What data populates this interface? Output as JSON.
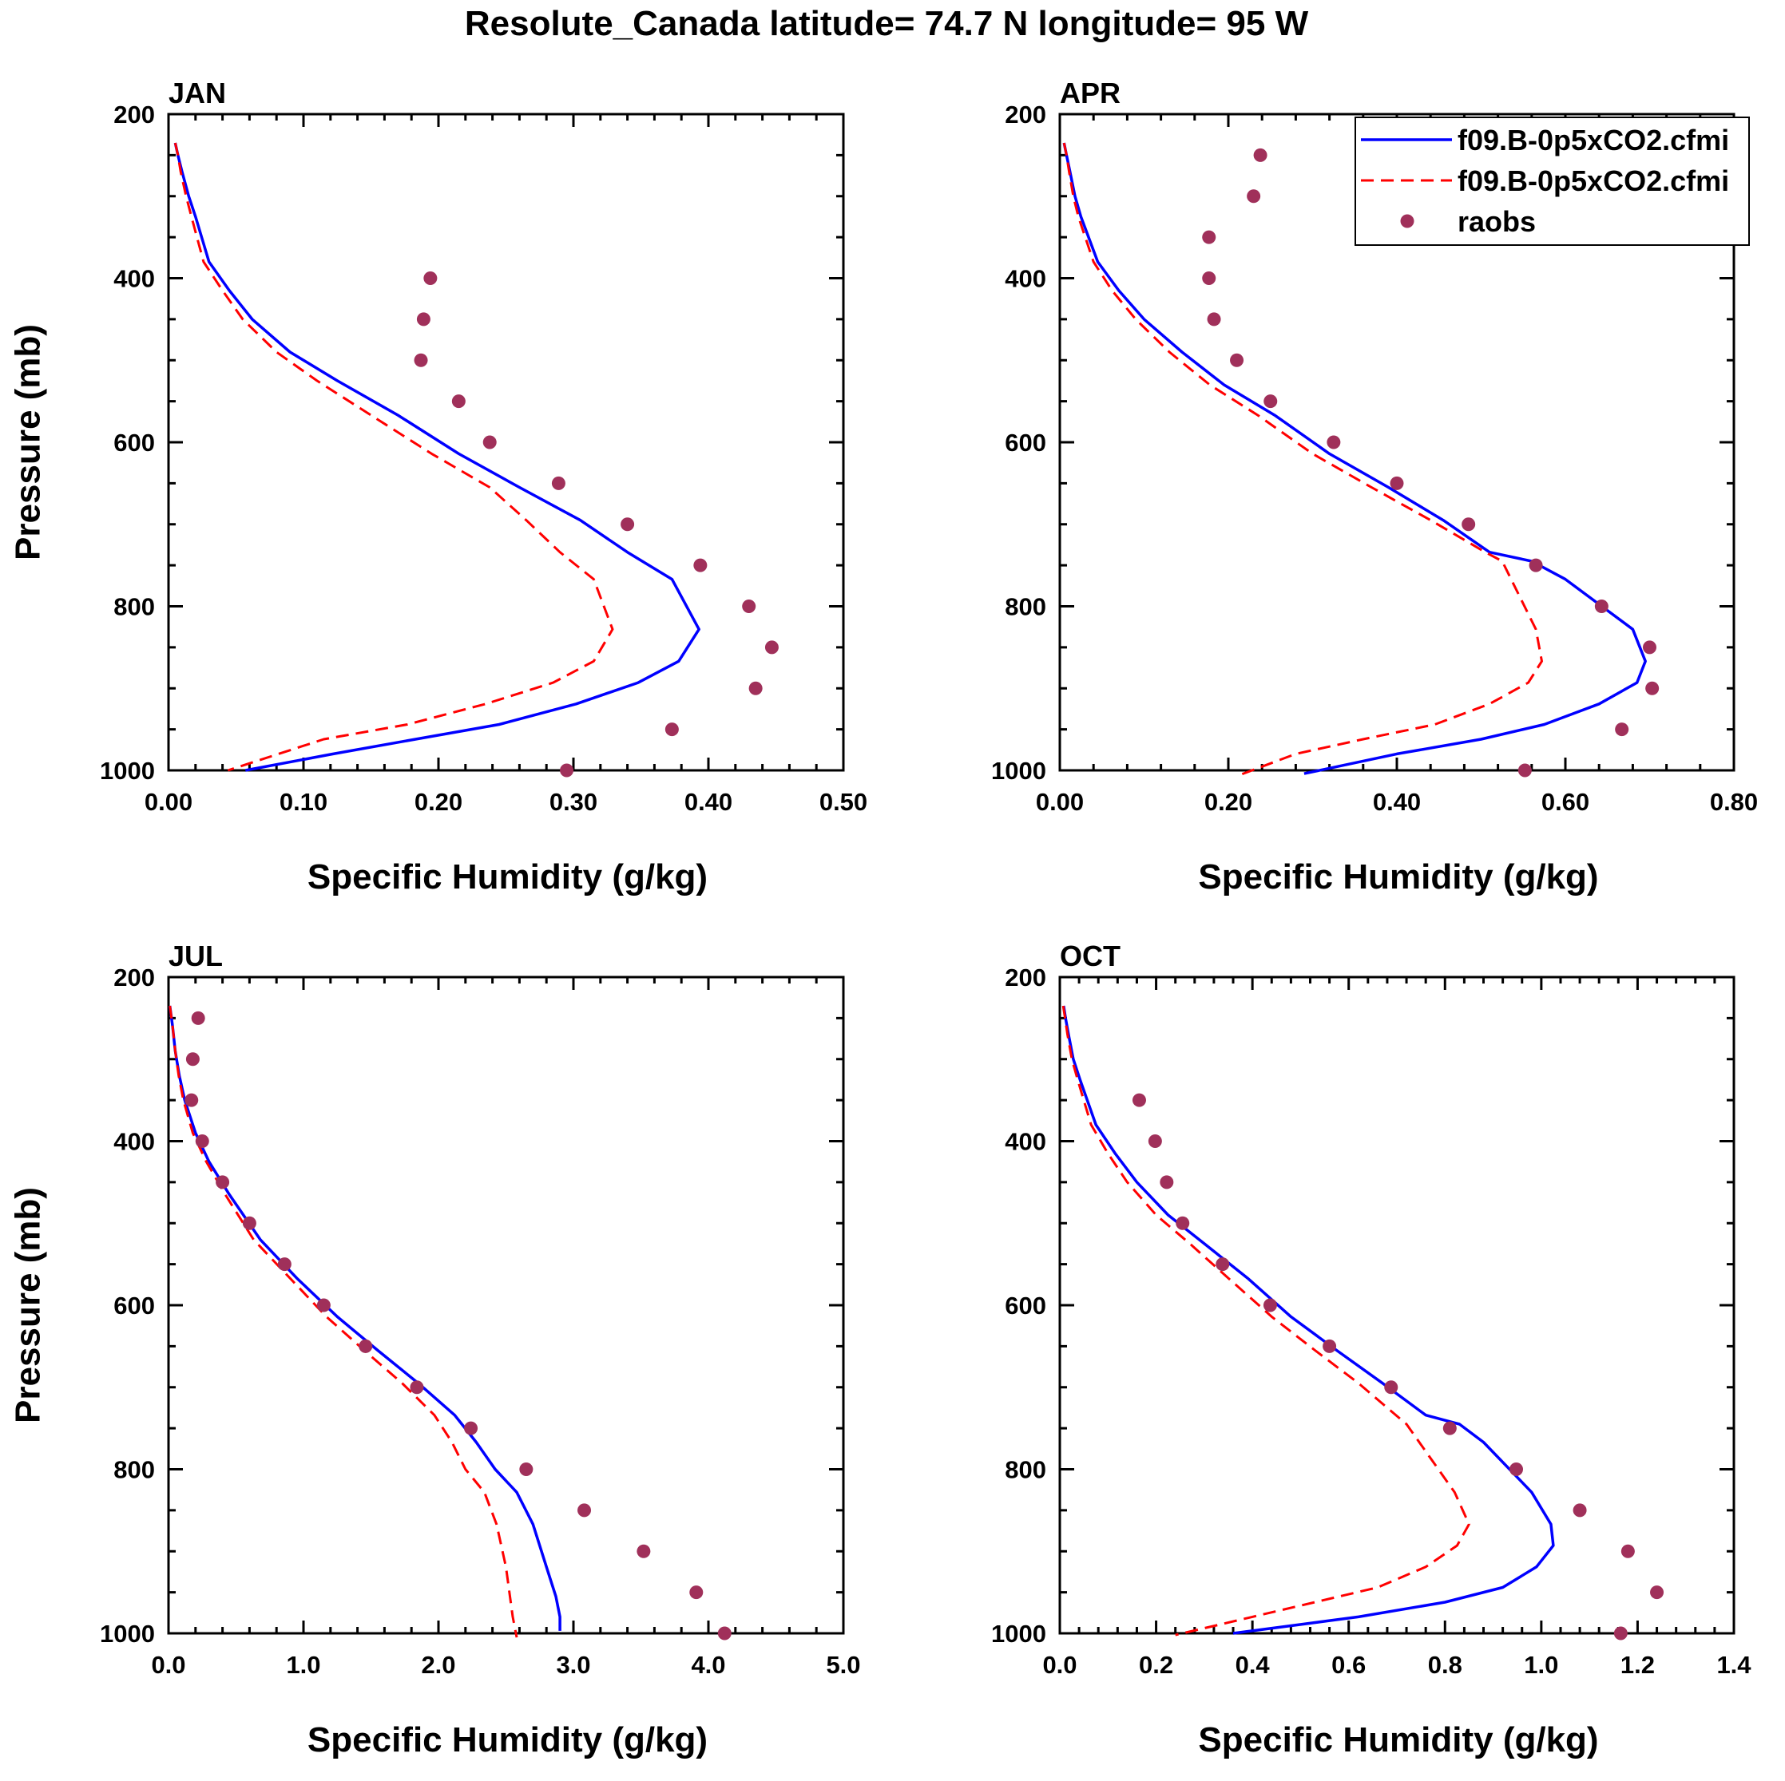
{
  "title": "Resolute_Canada  latitude= 74.7 N longitude= 95 W",
  "legend": {
    "entries": [
      {
        "label": "f09.B-0p5xCO2.cfmi",
        "kind": "line",
        "color": "#0000ff",
        "dash": false
      },
      {
        "label": "f09.B-0p5xCO2.cfmi",
        "kind": "line",
        "color": "#ff0000",
        "dash": true
      },
      {
        "label": "raobs",
        "kind": "marker",
        "color": "#a0305a"
      }
    ]
  },
  "colors": {
    "model1": "#0000ff",
    "model2": "#ff0000",
    "raobs": "#a0305a"
  },
  "chart_data": [
    {
      "type": "line",
      "panel": "JAN",
      "xlabel": "Specific Humidity (g/kg)",
      "ylabel": "Pressure (mb)",
      "xlim": [
        0,
        0.5
      ],
      "ylim": [
        200,
        1000
      ],
      "y_inverted": true,
      "xticks": [
        "0.00",
        "0.10",
        "0.20",
        "0.30",
        "0.40",
        "0.50"
      ],
      "xtick_values": [
        0,
        0.1,
        0.2,
        0.3,
        0.4,
        0.5
      ],
      "yticks": [
        "200",
        "400",
        "600",
        "800",
        "1000"
      ],
      "ytick_values": [
        200,
        400,
        600,
        800,
        1000
      ],
      "series": [
        {
          "name": "f09.B-0p5xCO2.cfmi",
          "x": [
            0.005,
            0.007,
            0.01,
            0.015,
            0.02,
            0.03,
            0.045,
            0.062,
            0.09,
            0.125,
            0.17,
            0.215,
            0.26,
            0.305,
            0.34,
            0.373,
            0.393,
            0.378,
            0.348,
            0.302,
            0.245,
            0.183,
            0.122,
            0.057
          ],
          "y": [
            235,
            250,
            270,
            300,
            325,
            380,
            415,
            450,
            490,
            525,
            567,
            614,
            655,
            695,
            734,
            767,
            828,
            867,
            893,
            919,
            944,
            962,
            980,
            1000
          ]
        },
        {
          "name": "f09.B-0p5xCO2.cfmi",
          "x": [
            0.005,
            0.007,
            0.009,
            0.013,
            0.017,
            0.026,
            0.04,
            0.055,
            0.08,
            0.11,
            0.15,
            0.195,
            0.238,
            0.265,
            0.29,
            0.315,
            0.329,
            0.315,
            0.285,
            0.235,
            0.177,
            0.115,
            0.044
          ],
          "y": [
            235,
            250,
            270,
            300,
            325,
            380,
            415,
            450,
            490,
            525,
            567,
            614,
            655,
            695,
            734,
            767,
            828,
            867,
            893,
            919,
            944,
            962,
            1000
          ]
        },
        {
          "name": "raobs",
          "marker": "dot",
          "x": [
            0.194,
            0.189,
            0.187,
            0.215,
            0.238,
            0.289,
            0.34,
            0.394,
            0.43,
            0.447,
            0.435,
            0.373,
            0.295
          ],
          "y": [
            400,
            450,
            500,
            550,
            600,
            650,
            700,
            750,
            800,
            850,
            900,
            950,
            1000
          ]
        }
      ]
    },
    {
      "type": "line",
      "panel": "APR",
      "xlabel": "Specific Humidity (g/kg)",
      "ylabel": "",
      "xlim": [
        0,
        0.8
      ],
      "ylim": [
        200,
        1000
      ],
      "y_inverted": true,
      "xticks": [
        "0.00",
        "0.20",
        "0.40",
        "0.60",
        "0.80"
      ],
      "xtick_values": [
        0,
        0.2,
        0.4,
        0.6,
        0.8
      ],
      "yticks": [
        "200",
        "400",
        "600",
        "800",
        "1000"
      ],
      "ytick_values": [
        200,
        400,
        600,
        800,
        1000
      ],
      "series": [
        {
          "name": "f09.B-0p5xCO2.cfmi",
          "x": [
            0.005,
            0.008,
            0.012,
            0.018,
            0.025,
            0.045,
            0.07,
            0.1,
            0.145,
            0.195,
            0.255,
            0.32,
            0.39,
            0.455,
            0.51,
            0.56,
            0.6,
            0.68,
            0.695,
            0.685,
            0.64,
            0.575,
            0.5,
            0.4,
            0.29
          ],
          "y": [
            235,
            250,
            270,
            300,
            325,
            380,
            415,
            450,
            490,
            530,
            567,
            614,
            655,
            695,
            734,
            745,
            767,
            828,
            867,
            893,
            919,
            944,
            962,
            980,
            1004
          ]
        },
        {
          "name": "f09.B-0p5xCO2.cfmi",
          "x": [
            0.005,
            0.008,
            0.011,
            0.016,
            0.022,
            0.04,
            0.062,
            0.09,
            0.13,
            0.178,
            0.235,
            0.3,
            0.37,
            0.44,
            0.505,
            0.525,
            0.565,
            0.572,
            0.556,
            0.51,
            0.445,
            0.36,
            0.28,
            0.21
          ],
          "y": [
            235,
            250,
            270,
            300,
            325,
            380,
            415,
            450,
            490,
            530,
            567,
            614,
            655,
            695,
            734,
            745,
            828,
            867,
            893,
            919,
            944,
            962,
            980,
            1007
          ]
        },
        {
          "name": "raobs",
          "marker": "dot",
          "x": [
            0.238,
            0.23,
            0.177,
            0.177,
            0.183,
            0.21,
            0.25,
            0.325,
            0.4,
            0.485,
            0.565,
            0.643,
            0.7,
            0.703,
            0.667,
            0.552
          ],
          "y": [
            250,
            300,
            350,
            400,
            450,
            500,
            550,
            600,
            650,
            700,
            750,
            800,
            850,
            900,
            950,
            1000
          ]
        }
      ]
    },
    {
      "type": "line",
      "panel": "JUL",
      "xlabel": "Specific Humidity (g/kg)",
      "ylabel": "Pressure (mb)",
      "xlim": [
        0,
        5
      ],
      "ylim": [
        200,
        1000
      ],
      "y_inverted": true,
      "xticks": [
        "0.0",
        "1.0",
        "2.0",
        "3.0",
        "4.0",
        "5.0"
      ],
      "xtick_values": [
        0,
        1,
        2,
        3,
        4,
        5
      ],
      "yticks": [
        "200",
        "400",
        "600",
        "800",
        "1000"
      ],
      "ytick_values": [
        200,
        400,
        600,
        800,
        1000
      ],
      "series": [
        {
          "name": "f09.B-0p5xCO2.cfmi",
          "x": [
            0.01,
            0.03,
            0.05,
            0.08,
            0.12,
            0.2,
            0.3,
            0.45,
            0.68,
            0.95,
            1.25,
            1.55,
            1.85,
            2.12,
            2.28,
            2.42,
            2.58,
            2.7,
            2.8,
            2.87,
            2.9,
            2.9
          ],
          "y": [
            235,
            260,
            290,
            320,
            350,
            390,
            425,
            465,
            520,
            567,
            614,
            655,
            695,
            734,
            767,
            800,
            828,
            867,
            919,
            955,
            980,
            997
          ]
        },
        {
          "name": "f09.B-0p5xCO2.cfmi",
          "x": [
            0.01,
            0.03,
            0.05,
            0.075,
            0.11,
            0.18,
            0.28,
            0.42,
            0.63,
            0.9,
            1.17,
            1.45,
            1.73,
            1.97,
            2.1,
            2.2,
            2.34,
            2.43,
            2.5,
            2.55,
            2.58
          ],
          "y": [
            235,
            260,
            290,
            320,
            350,
            390,
            425,
            465,
            520,
            567,
            614,
            655,
            695,
            734,
            767,
            800,
            828,
            867,
            919,
            980,
            1005
          ]
        },
        {
          "name": "raobs",
          "marker": "dot",
          "x": [
            0.22,
            0.18,
            0.17,
            0.25,
            0.4,
            0.6,
            0.86,
            1.15,
            1.46,
            1.84,
            2.24,
            2.65,
            3.08,
            3.52,
            3.91,
            4.12
          ],
          "y": [
            250,
            300,
            350,
            400,
            450,
            500,
            550,
            600,
            650,
            700,
            750,
            800,
            850,
            900,
            950,
            1000
          ]
        }
      ]
    },
    {
      "type": "line",
      "panel": "OCT",
      "xlabel": "Specific Humidity (g/kg)",
      "ylabel": "",
      "xlim": [
        0,
        1.4
      ],
      "ylim": [
        200,
        1000
      ],
      "y_inverted": true,
      "xticks": [
        "0.0",
        "0.2",
        "0.4",
        "0.6",
        "0.8",
        "1.0",
        "1.2",
        "1.4"
      ],
      "xtick_values": [
        0,
        0.2,
        0.4,
        0.6,
        0.8,
        1.0,
        1.2,
        1.4
      ],
      "yticks": [
        "200",
        "400",
        "600",
        "800",
        "1000"
      ],
      "ytick_values": [
        200,
        400,
        600,
        800,
        1000
      ],
      "series": [
        {
          "name": "f09.B-0p5xCO2.cfmi",
          "x": [
            0.008,
            0.012,
            0.018,
            0.028,
            0.042,
            0.075,
            0.115,
            0.16,
            0.225,
            0.3,
            0.39,
            0.48,
            0.575,
            0.67,
            0.76,
            0.83,
            0.88,
            0.98,
            1.02,
            1.025,
            0.99,
            0.92,
            0.8,
            0.62,
            0.36
          ],
          "y": [
            235,
            250,
            270,
            300,
            325,
            380,
            415,
            450,
            490,
            525,
            567,
            614,
            655,
            695,
            734,
            745,
            767,
            828,
            867,
            893,
            919,
            944,
            962,
            980,
            1000
          ]
        },
        {
          "name": "f09.B-0p5xCO2.cfmi",
          "x": [
            0.007,
            0.011,
            0.016,
            0.025,
            0.037,
            0.065,
            0.1,
            0.14,
            0.2,
            0.27,
            0.35,
            0.44,
            0.53,
            0.62,
            0.72,
            0.82,
            0.85,
            0.825,
            0.76,
            0.66,
            0.53,
            0.4,
            0.24
          ],
          "y": [
            235,
            250,
            270,
            300,
            325,
            380,
            415,
            450,
            490,
            525,
            567,
            614,
            655,
            695,
            745,
            828,
            867,
            893,
            919,
            944,
            962,
            980,
            1002
          ]
        },
        {
          "name": "raobs",
          "marker": "dot",
          "x": [
            0.165,
            0.198,
            0.222,
            0.255,
            0.338,
            0.437,
            0.56,
            0.688,
            0.81,
            0.948,
            1.08,
            1.18,
            1.24,
            1.165
          ],
          "y": [
            350,
            400,
            450,
            500,
            550,
            600,
            650,
            700,
            750,
            800,
            850,
            900,
            950,
            1000
          ]
        }
      ]
    }
  ]
}
